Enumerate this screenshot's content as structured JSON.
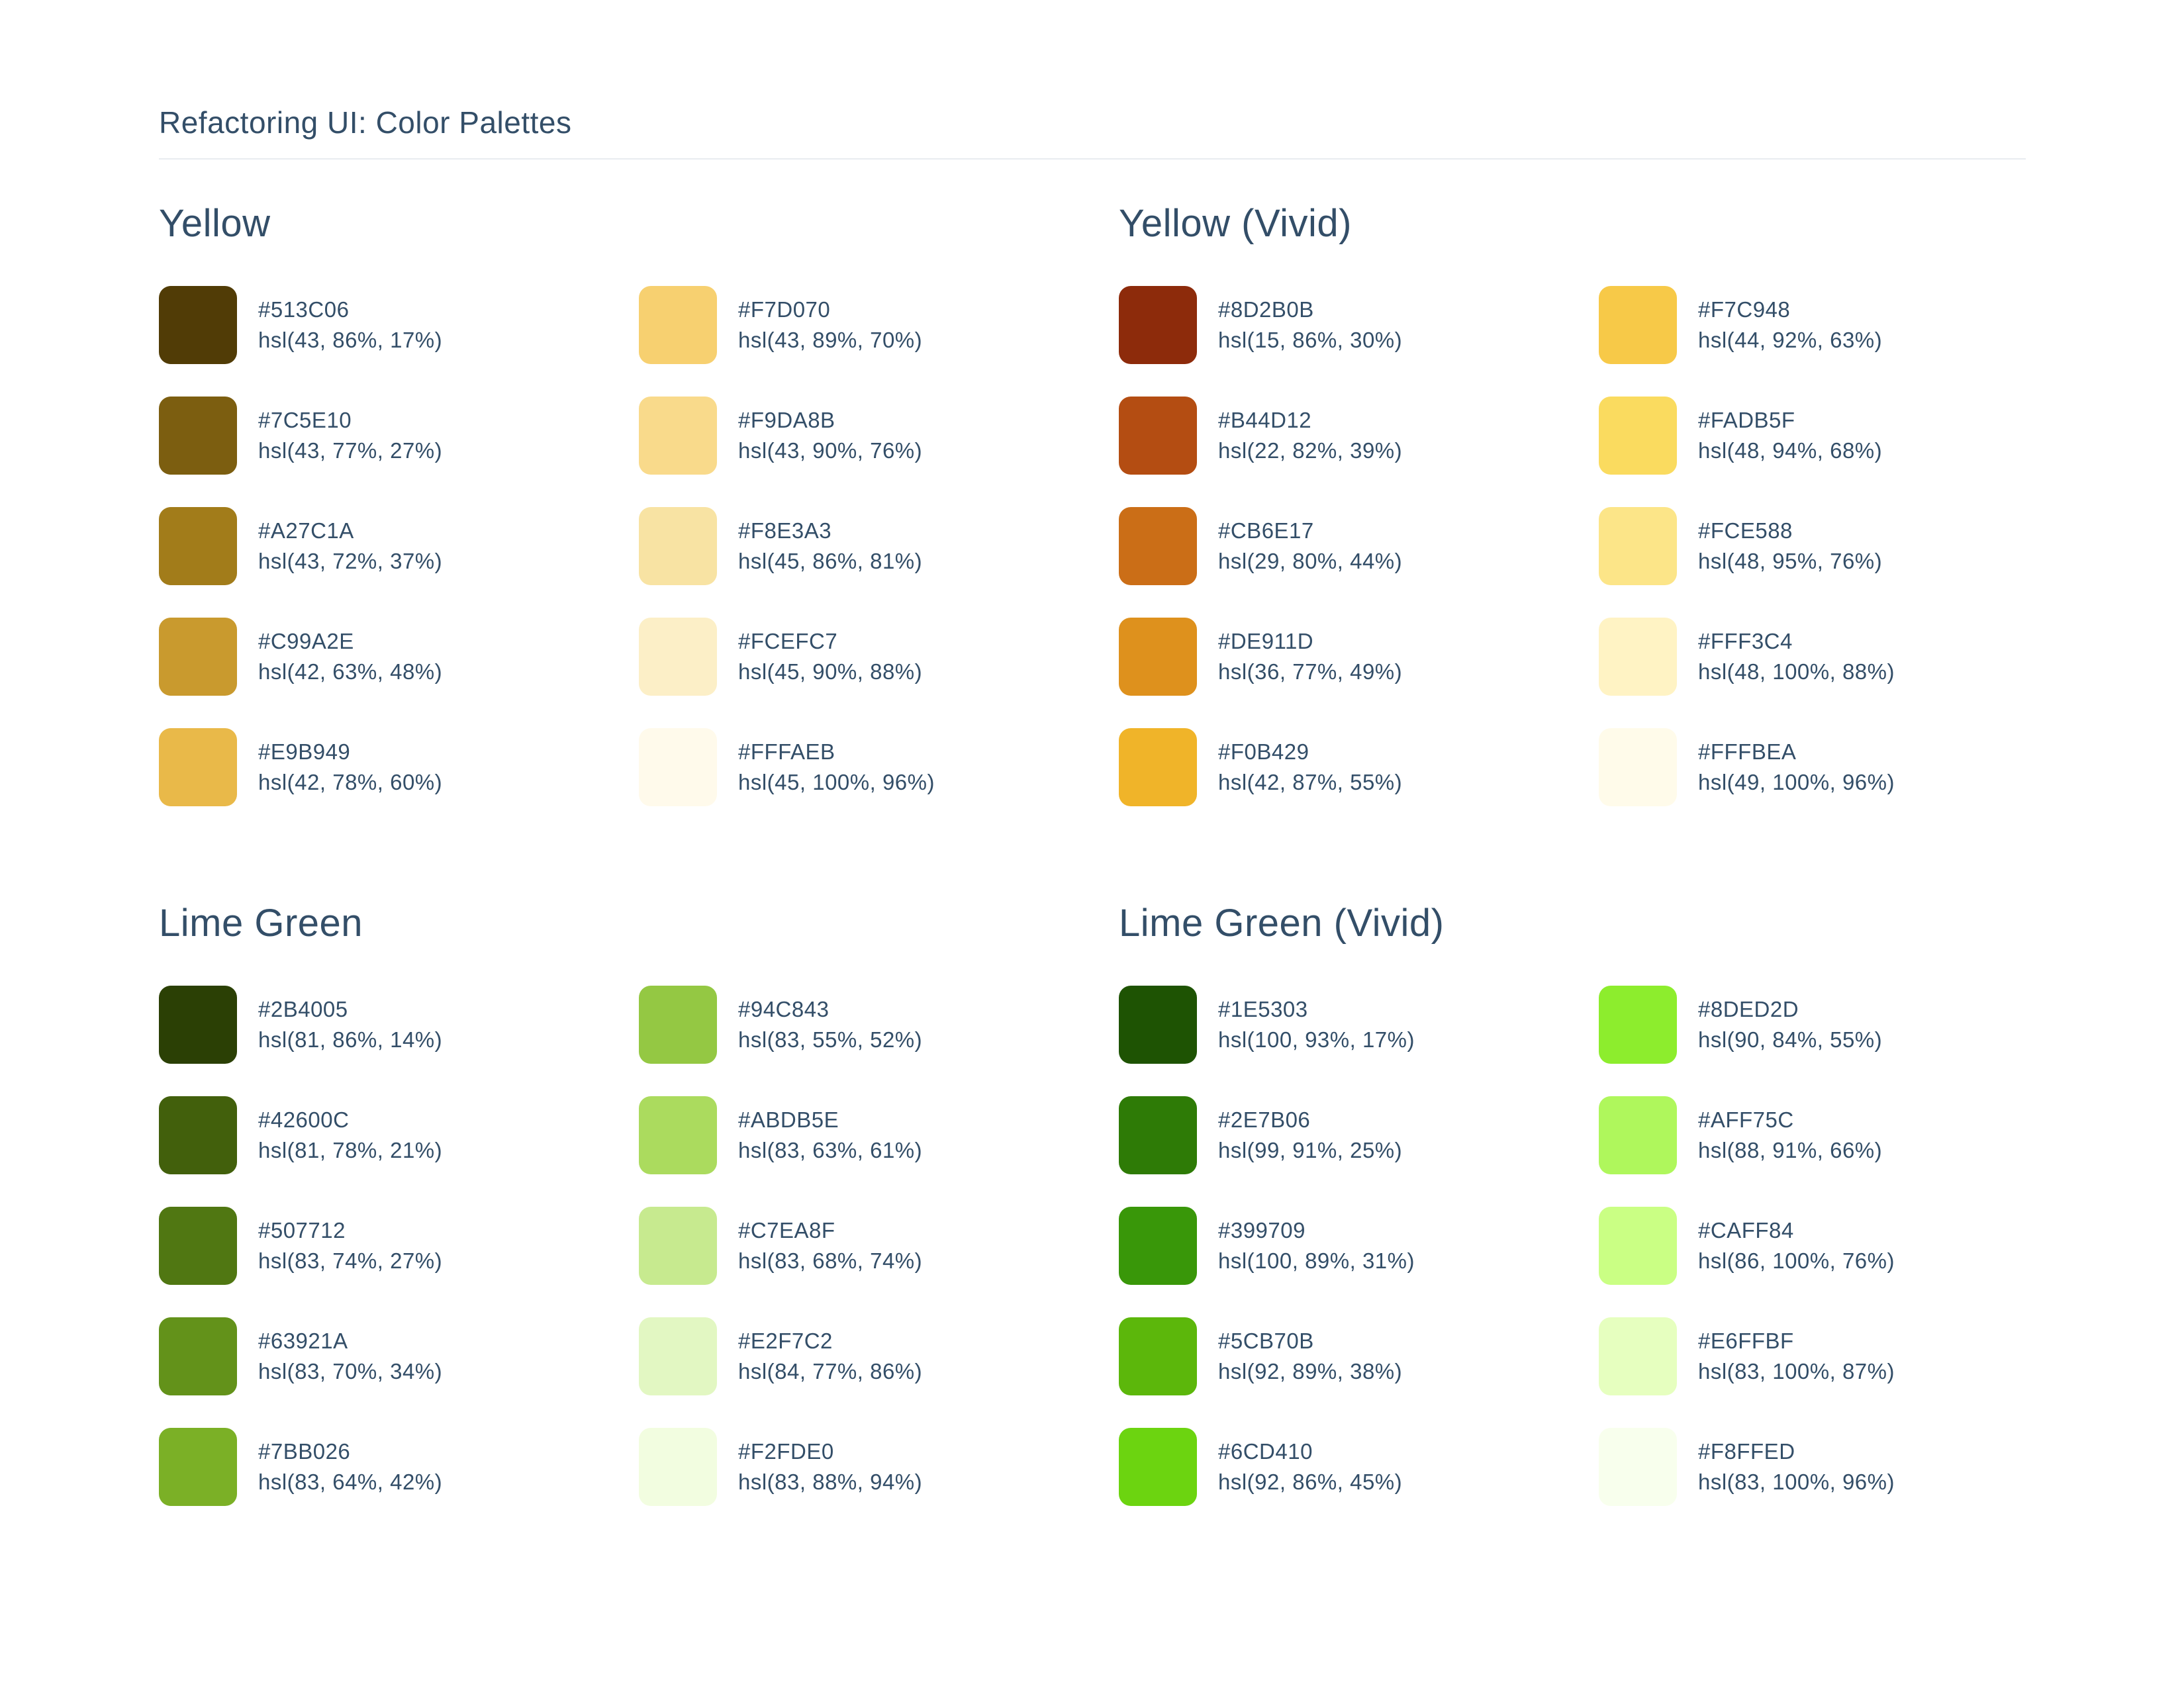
{
  "page": {
    "title": "Refactoring UI: Color Palettes"
  },
  "colors": {
    "text": "#334E68",
    "divider": "#E8ECF0",
    "background": "#FFFFFF"
  },
  "palettes": [
    {
      "name": "Yellow",
      "swatches": [
        {
          "hex": "#513C06",
          "hsl": "hsl(43, 86%, 17%)"
        },
        {
          "hex": "#7C5E10",
          "hsl": "hsl(43, 77%, 27%)"
        },
        {
          "hex": "#A27C1A",
          "hsl": "hsl(43, 72%, 37%)"
        },
        {
          "hex": "#C99A2E",
          "hsl": "hsl(42, 63%, 48%)"
        },
        {
          "hex": "#E9B949",
          "hsl": "hsl(42, 78%, 60%)"
        },
        {
          "hex": "#F7D070",
          "hsl": "hsl(43, 89%, 70%)"
        },
        {
          "hex": "#F9DA8B",
          "hsl": "hsl(43, 90%, 76%)"
        },
        {
          "hex": "#F8E3A3",
          "hsl": "hsl(45, 86%, 81%)"
        },
        {
          "hex": "#FCEFC7",
          "hsl": "hsl(45, 90%, 88%)"
        },
        {
          "hex": "#FFFAEB",
          "hsl": "hsl(45, 100%, 96%)"
        }
      ]
    },
    {
      "name": "Yellow (Vivid)",
      "swatches": [
        {
          "hex": "#8D2B0B",
          "hsl": "hsl(15, 86%, 30%)"
        },
        {
          "hex": "#B44D12",
          "hsl": "hsl(22, 82%, 39%)"
        },
        {
          "hex": "#CB6E17",
          "hsl": "hsl(29, 80%, 44%)"
        },
        {
          "hex": "#DE911D",
          "hsl": "hsl(36, 77%, 49%)"
        },
        {
          "hex": "#F0B429",
          "hsl": "hsl(42, 87%, 55%)"
        },
        {
          "hex": "#F7C948",
          "hsl": "hsl(44, 92%, 63%)"
        },
        {
          "hex": "#FADB5F",
          "hsl": "hsl(48, 94%, 68%)"
        },
        {
          "hex": "#FCE588",
          "hsl": "hsl(48, 95%, 76%)"
        },
        {
          "hex": "#FFF3C4",
          "hsl": "hsl(48, 100%, 88%)"
        },
        {
          "hex": "#FFFBEA",
          "hsl": "hsl(49, 100%, 96%)"
        }
      ]
    },
    {
      "name": "Lime Green",
      "swatches": [
        {
          "hex": "#2B4005",
          "hsl": "hsl(81, 86%, 14%)"
        },
        {
          "hex": "#42600C",
          "hsl": "hsl(81, 78%, 21%)"
        },
        {
          "hex": "#507712",
          "hsl": "hsl(83, 74%, 27%)"
        },
        {
          "hex": "#63921A",
          "hsl": "hsl(83, 70%, 34%)"
        },
        {
          "hex": "#7BB026",
          "hsl": "hsl(83, 64%, 42%)"
        },
        {
          "hex": "#94C843",
          "hsl": "hsl(83, 55%, 52%)"
        },
        {
          "hex": "#ABDB5E",
          "hsl": "hsl(83, 63%, 61%)"
        },
        {
          "hex": "#C7EA8F",
          "hsl": "hsl(83, 68%, 74%)"
        },
        {
          "hex": "#E2F7C2",
          "hsl": "hsl(84, 77%, 86%)"
        },
        {
          "hex": "#F2FDE0",
          "hsl": "hsl(83, 88%, 94%)"
        }
      ]
    },
    {
      "name": "Lime Green (Vivid)",
      "swatches": [
        {
          "hex": "#1E5303",
          "hsl": "hsl(100, 93%, 17%)"
        },
        {
          "hex": "#2E7B06",
          "hsl": "hsl(99, 91%, 25%)"
        },
        {
          "hex": "#399709",
          "hsl": "hsl(100, 89%, 31%)"
        },
        {
          "hex": "#5CB70B",
          "hsl": "hsl(92, 89%, 38%)"
        },
        {
          "hex": "#6CD410",
          "hsl": "hsl(92, 86%, 45%)"
        },
        {
          "hex": "#8DED2D",
          "hsl": "hsl(90, 84%, 55%)"
        },
        {
          "hex": "#AFF75C",
          "hsl": "hsl(88, 91%, 66%)"
        },
        {
          "hex": "#CAFF84",
          "hsl": "hsl(86, 100%, 76%)"
        },
        {
          "hex": "#E6FFBF",
          "hsl": "hsl(83, 100%, 87%)"
        },
        {
          "hex": "#F8FFED",
          "hsl": "hsl(83, 100%, 96%)"
        }
      ]
    }
  ]
}
